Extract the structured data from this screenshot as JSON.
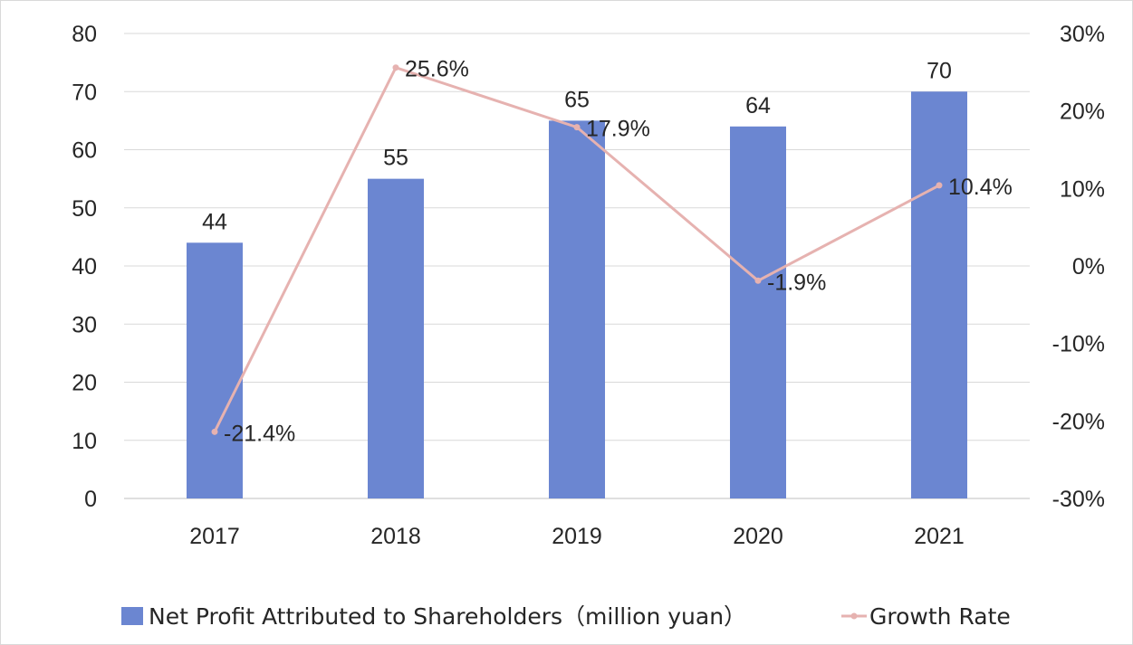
{
  "chart_data": {
    "type": "bar",
    "categories": [
      "2017",
      "2018",
      "2019",
      "2020",
      "2021"
    ],
    "series": [
      {
        "name": "Net Profit Attributed to Shareholders（million yuan）",
        "type": "bar",
        "axis": "left",
        "values": [
          44,
          55,
          65,
          64,
          70
        ],
        "data_labels": [
          "44",
          "55",
          "65",
          "64",
          "70"
        ],
        "color": "#6b86d1"
      },
      {
        "name": "Growth Rate",
        "type": "line",
        "axis": "right",
        "values": [
          -21.4,
          25.6,
          17.9,
          -1.9,
          10.4
        ],
        "data_labels": [
          "-21.4%",
          "25.6%",
          "17.9%",
          "-1.9%",
          "10.4%"
        ],
        "color": "#e6b2b0"
      }
    ],
    "y_left": {
      "lim": [
        0,
        80
      ],
      "ticks": [
        "0",
        "10",
        "20",
        "30",
        "40",
        "50",
        "60",
        "70",
        "80"
      ]
    },
    "y_right": {
      "lim": [
        -30,
        30
      ],
      "ticks": [
        "-30%",
        "-20%",
        "-10%",
        "0%",
        "10%",
        "20%",
        "30%"
      ]
    },
    "grid": true,
    "legend_position": "bottom"
  }
}
